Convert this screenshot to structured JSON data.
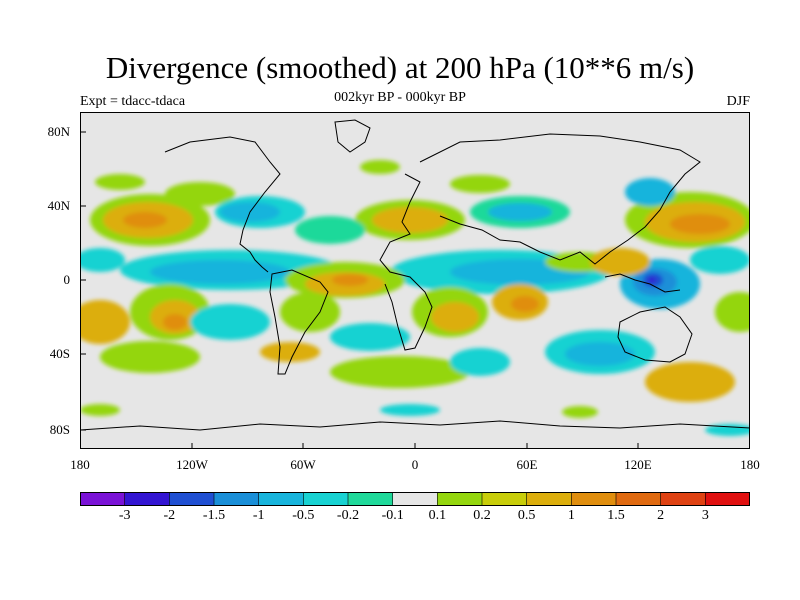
{
  "title": "Divergence (smoothed) at 200 hPa (10**6 m/s)",
  "subtitle": "002kyr BP - 000kyr BP",
  "experiment": "Expt = tdacc-tdaca",
  "season": "DJF",
  "map": {
    "projection": "cylindrical equidistant",
    "x_ticks": [
      "180",
      "120W",
      "60W",
      "0",
      "60E",
      "120E",
      "180"
    ],
    "y_ticks": [
      "80N",
      "40N",
      "0",
      "40S",
      "80S"
    ],
    "features": [
      "coastlines",
      "filled divergence contours"
    ]
  },
  "colorbar": {
    "labels": [
      "-3",
      "-2",
      "-1.5",
      "-1",
      "-0.5",
      "-0.2",
      "-0.1",
      "0.1",
      "0.2",
      "0.5",
      "1",
      "1.5",
      "2",
      "3"
    ],
    "colors": [
      "#7a12d6",
      "#3315d2",
      "#1f4fd2",
      "#1a8fd8",
      "#18b4dc",
      "#18d2d2",
      "#1fd99a",
      "#e6e6e6",
      "#94d60e",
      "#c8cd0a",
      "#dcae0c",
      "#e08e0e",
      "#e06a10",
      "#df4213",
      "#e01010"
    ]
  }
}
